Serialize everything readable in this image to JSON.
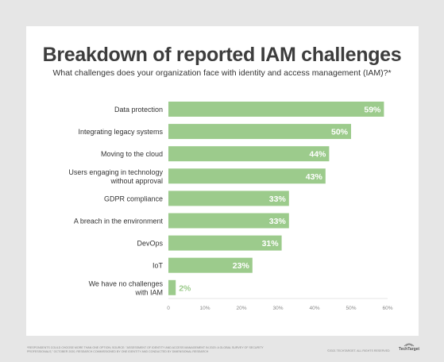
{
  "title": "Breakdown of reported IAM challenges",
  "subtitle": "What challenges does your organization face with identity and access management (IAM)?*",
  "footnote": "*Respondents could choose more than one option; Source: \"Assessment of Identity and Access Management in 2020: A Global Survey of Security Professionals,\" October 2020, research commissioned by One Identity and conducted by Dimensional Research",
  "copyright": "©2021 TechTarget. All rights reserved",
  "brand": "TechTarget",
  "colors": {
    "bar": "#9ccb8c",
    "label_inside": "#ffffff",
    "label_outside": "#9ccb8c",
    "background": "#e6e6e6",
    "card": "#ffffff"
  },
  "chart_data": {
    "type": "bar",
    "orientation": "horizontal",
    "categories": [
      "Data protection",
      "Integrating legacy systems",
      "Moving to the cloud",
      "Users engaging in technology without approval",
      "GDPR compliance",
      "A breach in the environment",
      "DevOps",
      "IoT",
      "We have no challenges with IAM"
    ],
    "category_lines": [
      [
        "Data protection"
      ],
      [
        "Integrating legacy systems"
      ],
      [
        "Moving to the cloud"
      ],
      [
        "Users engaging in technology",
        "without approval"
      ],
      [
        "GDPR compliance"
      ],
      [
        "A breach in the environment"
      ],
      [
        "DevOps"
      ],
      [
        "IoT"
      ],
      [
        "We have no challenges",
        "with IAM"
      ]
    ],
    "values": [
      59,
      50,
      44,
      43,
      33,
      33,
      31,
      23,
      2
    ],
    "value_labels": [
      "59%",
      "50%",
      "44%",
      "43%",
      "33%",
      "33%",
      "31%",
      "23%",
      "2%"
    ],
    "xlim": [
      0,
      60
    ],
    "x_ticks": [
      0,
      10,
      20,
      30,
      40,
      50,
      60
    ],
    "x_tick_labels": [
      "0",
      "10%",
      "20%",
      "30%",
      "40%",
      "50%",
      "60%"
    ],
    "grid": false,
    "legend": "none"
  }
}
